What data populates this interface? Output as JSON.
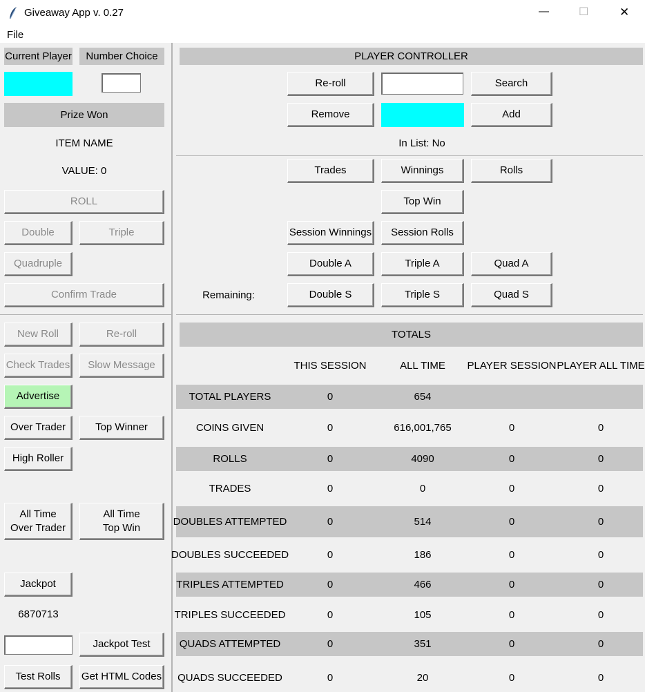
{
  "window": {
    "title": "Giveaway App v. 0.27",
    "min_glyph": "—",
    "max_glyph": "☐",
    "close_glyph": "✕"
  },
  "menu": {
    "file": "File"
  },
  "left": {
    "current_player_label": "Current Player",
    "number_choice_label": "Number Choice",
    "prize_won_label": "Prize Won",
    "item_name": "ITEM NAME",
    "value": "VALUE: 0",
    "roll": "ROLL",
    "double": "Double",
    "triple": "Triple",
    "quadruple": "Quadruple",
    "confirm_trade": "Confirm Trade",
    "new_roll": "New Roll",
    "reroll": "Re-roll",
    "check_trades": "Check Trades",
    "slow_message": "Slow Message",
    "advertise": "Advertise",
    "over_trader": "Over Trader",
    "top_winner": "Top Winner",
    "high_roller": "High Roller",
    "all_time_over_trader_1": "All Time",
    "all_time_over_trader_2": "Over Trader",
    "all_time_top_win_1": "All Time",
    "all_time_top_win_2": "Top Win",
    "jackpot": "Jackpot",
    "jackpot_value": "6870713",
    "jackpot_test": "Jackpot Test",
    "test_rolls": "Test Rolls",
    "get_html_codes": "Get HTML Codes"
  },
  "controller": {
    "title": "PLAYER CONTROLLER",
    "reroll": "Re-roll",
    "search": "Search",
    "remove": "Remove",
    "add": "Add",
    "in_list": "In List: No",
    "trades": "Trades",
    "winnings": "Winnings",
    "rolls": "Rolls",
    "top_win": "Top Win",
    "session_winnings": "Session Winnings",
    "session_rolls": "Session Rolls",
    "double_a": "Double A",
    "triple_a": "Triple A",
    "quad_a": "Quad A",
    "remaining": "Remaining:",
    "double_s": "Double S",
    "triple_s": "Triple S",
    "quad_s": "Quad S"
  },
  "totals": {
    "title": "TOTALS",
    "headers": [
      "THIS SESSION",
      "ALL TIME",
      "PLAYER SESSION",
      "PLAYER ALL TIME"
    ],
    "rows": [
      {
        "label": "TOTAL PLAYERS",
        "values": [
          "0",
          "654",
          "",
          ""
        ]
      },
      {
        "label": "COINS GIVEN",
        "values": [
          "0",
          "616,001,765",
          "0",
          "0"
        ]
      },
      {
        "label": "ROLLS",
        "values": [
          "0",
          "4090",
          "0",
          "0"
        ]
      },
      {
        "label": "TRADES",
        "values": [
          "0",
          "0",
          "0",
          "0"
        ]
      },
      {
        "label": "DOUBLES ATTEMPTED",
        "values": [
          "0",
          "514",
          "0",
          "0"
        ]
      },
      {
        "label": "DOUBLES SUCCEEDED",
        "values": [
          "0",
          "186",
          "0",
          "0"
        ]
      },
      {
        "label": "TRIPLES ATTEMPTED",
        "values": [
          "0",
          "466",
          "0",
          "0"
        ]
      },
      {
        "label": "TRIPLES SUCCEEDED",
        "values": [
          "0",
          "105",
          "0",
          "0"
        ]
      },
      {
        "label": "QUADS ATTEMPTED",
        "values": [
          "0",
          "351",
          "0",
          "0"
        ]
      },
      {
        "label": "QUADS SUCCEEDED",
        "values": [
          "0",
          "20",
          "0",
          "0"
        ]
      }
    ]
  },
  "colors": {
    "cyan": "#00ffff",
    "green": "#b6f5b6",
    "gray": "#c6c6c6"
  }
}
